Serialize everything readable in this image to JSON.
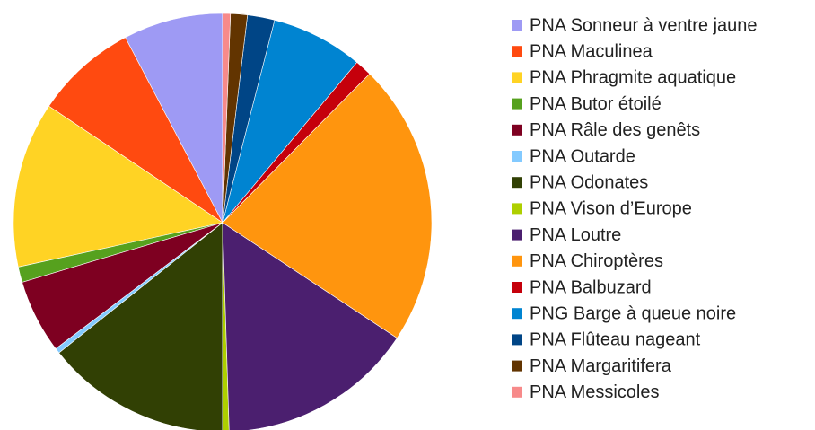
{
  "chart_data": {
    "type": "pie",
    "categories": [
      "PNA Sonneur à ventre jaune",
      "PNA Maculinea",
      "PNA Phragmite aquatique",
      "PNA Butor étoilé",
      "PNA Râle des genêts",
      "PNA Outarde",
      "PNA Odonates",
      "PNA Vison d’Europe",
      "PNA Loutre",
      "PNA Chiroptères",
      "PNA Balbuzard",
      "PNG Barge à queue noire",
      "PNA Flûteau nageant",
      "PNA Margaritifera",
      "PNA Messicoles"
    ],
    "values": [
      7.7,
      7.9,
      12.8,
      1.2,
      5.7,
      0.4,
      14.3,
      0.5,
      15.2,
      21.9,
      1.3,
      7.1,
      2.1,
      1.3,
      0.6
    ],
    "colors": [
      "#9e9af4",
      "#ff4a10",
      "#ffd324",
      "#56a11e",
      "#7e0021",
      "#83caff",
      "#314004",
      "#aecf00",
      "#4b1f6f",
      "#ff950e",
      "#c5000b",
      "#0084d1",
      "#004586",
      "#623400",
      "#f78a8a"
    ],
    "legend": "right"
  }
}
